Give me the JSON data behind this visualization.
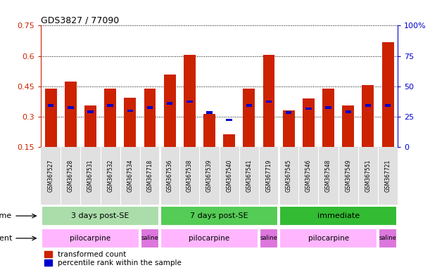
{
  "title": "GDS3827 / 77090",
  "samples": [
    "GSM367527",
    "GSM367528",
    "GSM367531",
    "GSM367532",
    "GSM367534",
    "GSM367718",
    "GSM367536",
    "GSM367538",
    "GSM367539",
    "GSM367540",
    "GSM367541",
    "GSM367719",
    "GSM367545",
    "GSM367546",
    "GSM367548",
    "GSM367549",
    "GSM367551",
    "GSM367721"
  ],
  "red_values": [
    0.44,
    0.475,
    0.355,
    0.44,
    0.395,
    0.44,
    0.51,
    0.605,
    0.315,
    0.215,
    0.44,
    0.605,
    0.33,
    0.39,
    0.44,
    0.355,
    0.455,
    0.67
  ],
  "blue_values": [
    0.355,
    0.345,
    0.325,
    0.355,
    0.33,
    0.345,
    0.365,
    0.375,
    0.32,
    0.285,
    0.355,
    0.375,
    0.32,
    0.34,
    0.345,
    0.325,
    0.355,
    0.355
  ],
  "time_groups": [
    {
      "label": "3 days post-SE",
      "start": 0,
      "end": 6,
      "color": "#AADDAA"
    },
    {
      "label": "7 days post-SE",
      "start": 6,
      "end": 12,
      "color": "#55CC55"
    },
    {
      "label": "immediate",
      "start": 12,
      "end": 18,
      "color": "#33BB33"
    }
  ],
  "agent_groups": [
    {
      "label": "pilocarpine",
      "start": 0,
      "end": 5,
      "color": "#FFB6FF"
    },
    {
      "label": "saline",
      "start": 5,
      "end": 6,
      "color": "#DD77DD"
    },
    {
      "label": "pilocarpine",
      "start": 6,
      "end": 11,
      "color": "#FFB6FF"
    },
    {
      "label": "saline",
      "start": 11,
      "end": 12,
      "color": "#DD77DD"
    },
    {
      "label": "pilocarpine",
      "start": 12,
      "end": 17,
      "color": "#FFB6FF"
    },
    {
      "label": "saline",
      "start": 17,
      "end": 18,
      "color": "#DD77DD"
    }
  ],
  "ymin": 0.15,
  "ylim_left": [
    0.15,
    0.75
  ],
  "ylim_right": [
    0,
    100
  ],
  "yticks_left": [
    0.15,
    0.3,
    0.45,
    0.6,
    0.75
  ],
  "yticks_right": [
    0,
    25,
    50,
    75,
    100
  ],
  "bar_color": "#CC2200",
  "dot_color": "#0000CC",
  "left_axis_color": "#CC2200",
  "right_axis_color": "#0000CC",
  "legend_items": [
    "transformed count",
    "percentile rank within the sample"
  ]
}
